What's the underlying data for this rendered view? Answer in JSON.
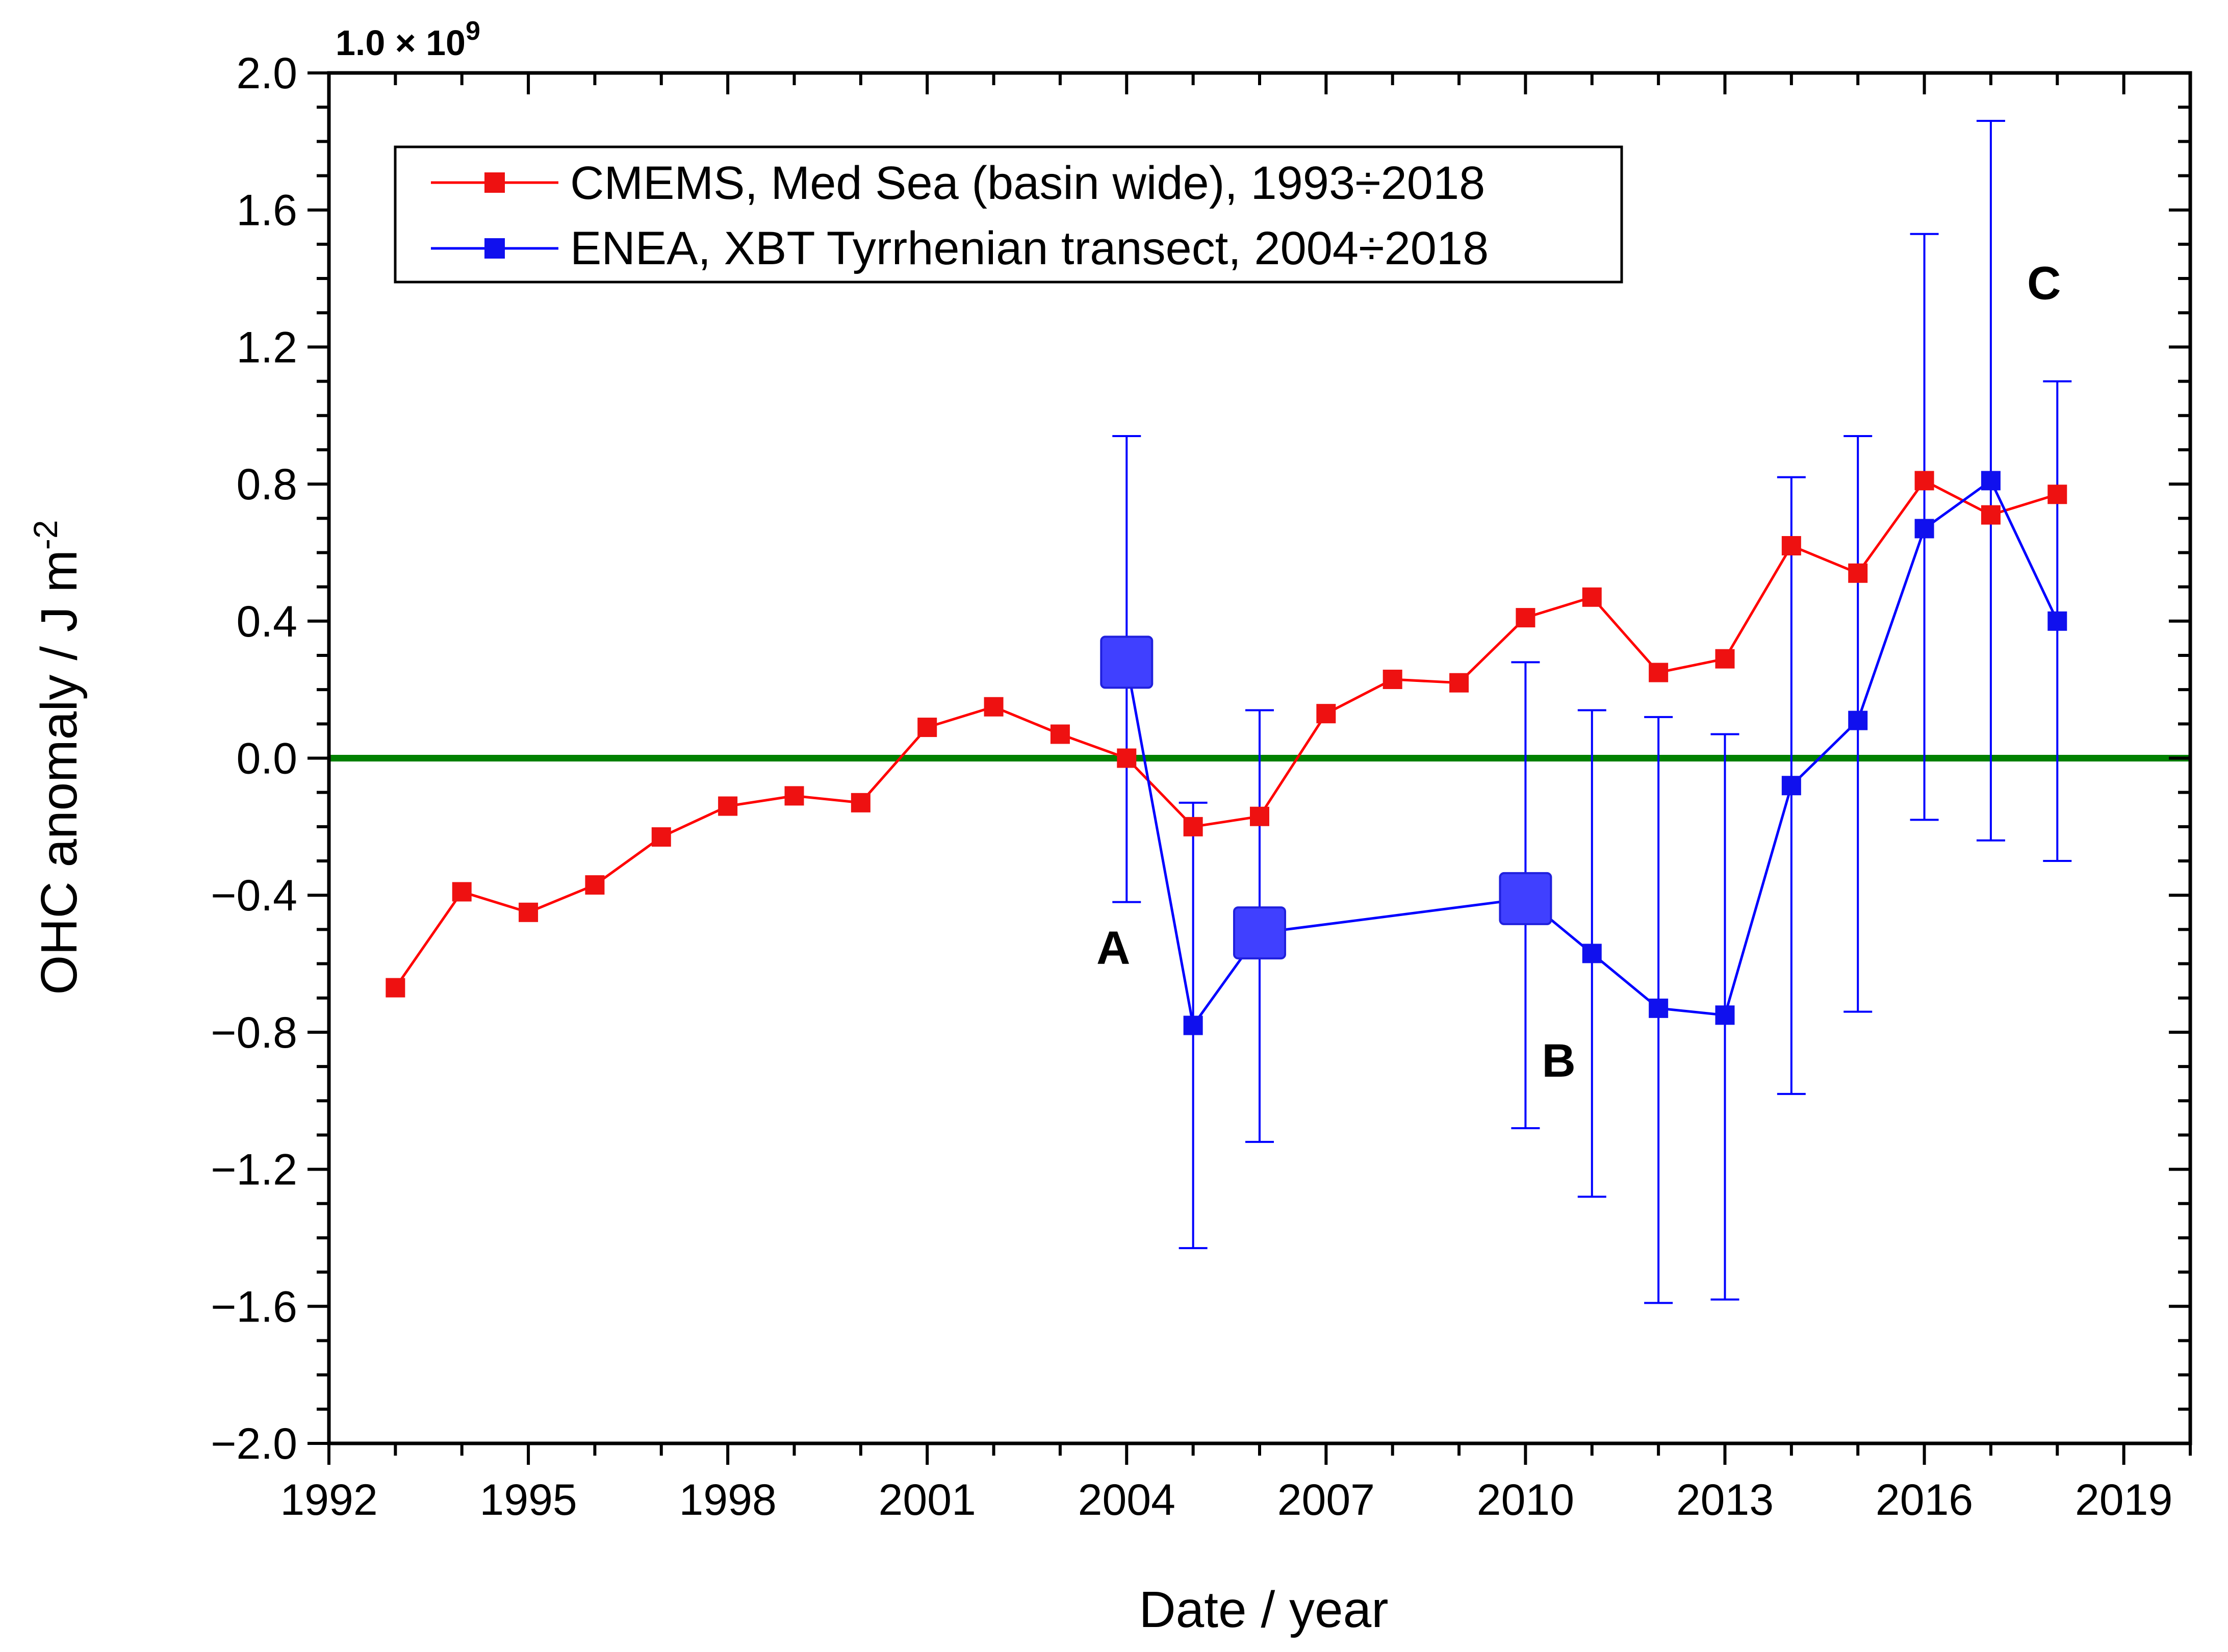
{
  "chart_data": {
    "type": "line",
    "title": "",
    "xlabel": "Date / year",
    "ylabel": "OHC anomaly / J m",
    "ylabel_superscript": "-2",
    "y_multiplier_text": "1.0 × 10",
    "y_multiplier_exponent": "9",
    "xlim": [
      1992,
      2020
    ],
    "ylim": [
      -2.0,
      2.0
    ],
    "x_ticks": [
      1992,
      1995,
      1998,
      2001,
      2004,
      2007,
      2010,
      2013,
      2016,
      2019
    ],
    "x_tick_labels": [
      "1992",
      "1995",
      "1998",
      "2001",
      "2004",
      "2007",
      "2010",
      "2013",
      "2016",
      "2019"
    ],
    "y_ticks": [
      -2.0,
      -1.6,
      -1.2,
      -0.8,
      -0.4,
      0.0,
      0.4,
      0.8,
      1.2,
      1.6,
      2.0
    ],
    "y_tick_labels": [
      "−2.0",
      "−1.6",
      "−1.2",
      "−0.8",
      "−0.4",
      "0.0",
      "0.4",
      "0.8",
      "1.2",
      "1.6",
      "2.0"
    ],
    "reference_line": {
      "y": 0.0,
      "color": "#008000"
    },
    "legend_position": "top-left",
    "series": [
      {
        "name": "CMEMS, Med Sea (basin wide), 1993÷2018",
        "color": "#ff0000",
        "marker_color": "#ee1111",
        "x": [
          1993,
          1994,
          1995,
          1996,
          1997,
          1998,
          1999,
          2000,
          2001,
          2002,
          2003,
          2004,
          2005,
          2006,
          2007,
          2008,
          2009,
          2010,
          2011,
          2012,
          2013,
          2014,
          2015,
          2016,
          2017,
          2018
        ],
        "y": [
          -0.67,
          -0.39,
          -0.45,
          -0.37,
          -0.23,
          -0.14,
          -0.11,
          -0.13,
          0.09,
          0.15,
          0.07,
          0.0,
          -0.2,
          -0.17,
          0.13,
          0.23,
          0.22,
          0.41,
          0.47,
          0.25,
          0.29,
          0.62,
          0.54,
          0.81,
          0.71,
          0.77
        ]
      },
      {
        "name": "ENEA, XBT Tyrrhenian transect, 2004÷2018",
        "color": "#0000ff",
        "marker_color": "#1010ee",
        "highlight_color": "#4040ff",
        "x": [
          2004,
          2005,
          2006,
          2010,
          2011,
          2012,
          2013,
          2014,
          2015,
          2016,
          2017,
          2018
        ],
        "y": [
          0.28,
          -0.78,
          -0.51,
          -0.41,
          -0.57,
          -0.73,
          -0.75,
          -0.08,
          0.11,
          0.67,
          0.81,
          0.4
        ],
        "y_upper": [
          0.94,
          -0.13,
          0.14,
          0.28,
          0.14,
          0.12,
          0.07,
          0.82,
          0.94,
          1.53,
          1.86,
          1.1
        ],
        "y_lower": [
          -0.42,
          -1.43,
          -1.12,
          -1.08,
          -1.28,
          -1.59,
          -1.58,
          -0.98,
          -0.74,
          -0.18,
          -0.24,
          -0.3
        ],
        "highlighted": [
          true,
          false,
          true,
          true,
          false,
          false,
          false,
          false,
          false,
          false,
          false,
          false
        ]
      }
    ],
    "annotations": [
      {
        "text": "A",
        "x": 2003.8,
        "y": -0.6
      },
      {
        "text": "B",
        "x": 2010.5,
        "y": -0.93
      },
      {
        "text": "C",
        "x": 2017.8,
        "y": 1.34
      }
    ]
  }
}
